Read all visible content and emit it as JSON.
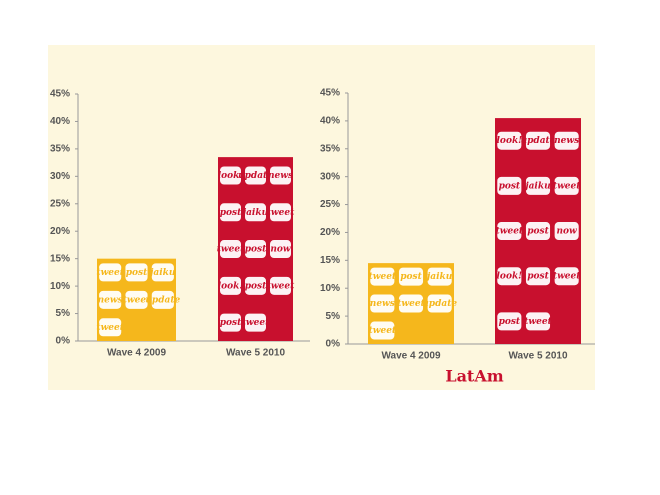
{
  "chart_data": [
    {
      "type": "bar",
      "categories": [
        "Wave 4 2009",
        "Wave 5 2010"
      ],
      "values": [
        15,
        33.5
      ],
      "colors": [
        "#f5b71c",
        "#c8102e"
      ],
      "bar_words": [
        [
          "tweet",
          "post",
          "jaiku",
          "news",
          "tweet",
          "update",
          "tweet"
        ],
        [
          "look!",
          "update",
          "news",
          "post",
          "jaiku",
          "tweet",
          "tweet",
          "post",
          "now",
          "look!",
          "post",
          "tweet",
          "post",
          "tweet"
        ]
      ],
      "ylim": [
        0,
        45
      ],
      "yticks": [
        {
          "value": 0,
          "label": "0%"
        },
        {
          "value": 5,
          "label": "5%"
        },
        {
          "value": 10,
          "label": "10%"
        },
        {
          "value": 15,
          "label": "15%"
        },
        {
          "value": 20,
          "label": "20%"
        },
        {
          "value": 25,
          "label": "25%"
        },
        {
          "value": 30,
          "label": "30%"
        },
        {
          "value": 35,
          "label": "35%"
        },
        {
          "value": 40,
          "label": "40%"
        },
        {
          "value": 45,
          "label": "45%"
        }
      ]
    },
    {
      "type": "bar",
      "categories": [
        "Wave 4 2009",
        "Wave 5 2010"
      ],
      "values": [
        14.5,
        40.5
      ],
      "colors": [
        "#f5b71c",
        "#c8102e"
      ],
      "bar_words": [
        [
          "tweet",
          "post",
          "jaiku",
          "news",
          "tweet",
          "update",
          "tweet"
        ],
        [
          "look!",
          "update",
          "news",
          "post",
          "jaiku",
          "tweet",
          "tweet",
          "post",
          "now",
          "look!",
          "post",
          "tweet",
          "post",
          "tweet"
        ]
      ],
      "ylim": [
        0,
        45
      ],
      "yticks": [
        {
          "value": 0,
          "label": "0%"
        },
        {
          "value": 5,
          "label": "5%"
        },
        {
          "value": 10,
          "label": "10%"
        },
        {
          "value": 15,
          "label": "15%"
        },
        {
          "value": 20,
          "label": "20%"
        },
        {
          "value": 25,
          "label": "25%"
        },
        {
          "value": 30,
          "label": "30%"
        },
        {
          "value": 35,
          "label": "35%"
        },
        {
          "value": 40,
          "label": "40%"
        },
        {
          "value": 45,
          "label": "45%"
        }
      ],
      "label": "LatAm"
    }
  ]
}
